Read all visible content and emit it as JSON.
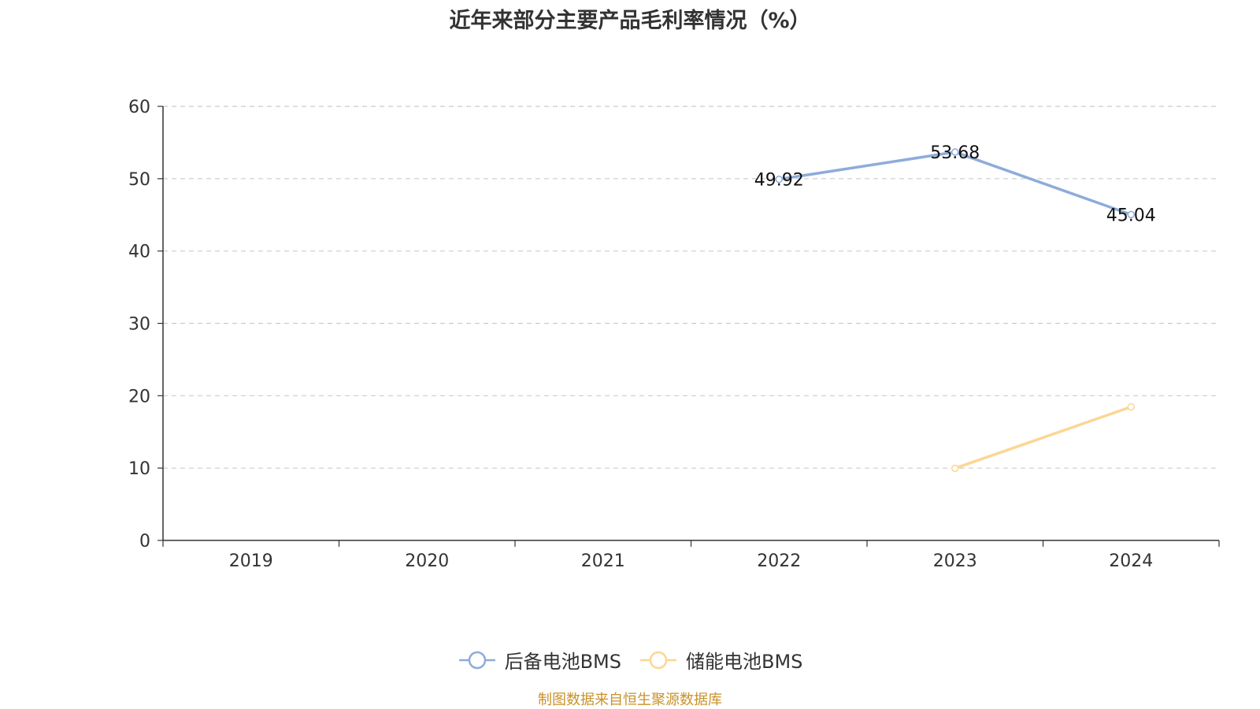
{
  "title": "近年来部分主要产品毛利率情况（%）",
  "source_note": "制图数据来自恒生聚源数据库",
  "colors": {
    "series1": "#8eacd9",
    "series2": "#fcd693",
    "grid": "#cccccc",
    "axis": "#333333",
    "source": "#c8922a"
  },
  "chart_data": {
    "type": "line",
    "title": "近年来部分主要产品毛利率情况（%）",
    "categories": [
      "2019",
      "2020",
      "2021",
      "2022",
      "2023",
      "2024"
    ],
    "ylim": [
      0,
      60
    ],
    "yticks": [
      0,
      10,
      20,
      30,
      40,
      50,
      60
    ],
    "grid": true,
    "legend_position": "bottom",
    "series": [
      {
        "name": "后备电池BMS",
        "values": [
          null,
          null,
          null,
          49.92,
          53.68,
          45.04
        ],
        "show_labels": true,
        "color": "#8eacd9"
      },
      {
        "name": "储能电池BMS",
        "values": [
          null,
          null,
          null,
          null,
          9.97,
          18.46
        ],
        "show_labels": false,
        "color": "#fcd693"
      }
    ]
  }
}
